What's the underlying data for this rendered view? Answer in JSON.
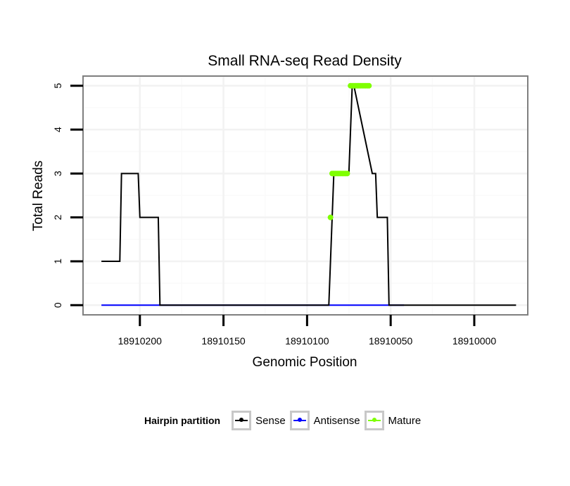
{
  "chart_data": {
    "type": "line",
    "title": "Small RNA-seq Read Density",
    "xlabel": "Genomic Position",
    "ylabel": "Total Reads",
    "xlim": [
      18910234,
      18909968
    ],
    "ylim": [
      -0.22,
      5.22
    ],
    "x_reversed": true,
    "x_ticks": [
      18910200,
      18910150,
      18910100,
      18910050,
      18910000
    ],
    "x_tick_labels": [
      "18910200",
      "18910150",
      "18910100",
      "18910050",
      "18910000"
    ],
    "y_ticks": [
      0,
      1,
      2,
      3,
      4,
      5
    ],
    "y_tick_labels": [
      "0",
      "1",
      "2",
      "3",
      "4",
      "5"
    ],
    "grid": true,
    "series": [
      {
        "name": "Sense",
        "color": "#000000",
        "x": [
          18910223,
          18910212,
          18910211,
          18910201,
          18910200,
          18910189,
          18910188,
          18910087,
          18910085,
          18910084,
          18910075,
          18910073,
          18910072,
          18910061,
          18910059,
          18910058,
          18910052,
          18910051,
          18910043,
          18910042,
          18909975
        ],
        "y": [
          1,
          1,
          3,
          3,
          2,
          2,
          0,
          0,
          2,
          3,
          3,
          5,
          5,
          3,
          3,
          2,
          2,
          0,
          0,
          0,
          0
        ]
      },
      {
        "name": "Antisense",
        "color": "#0000ff",
        "x": [
          18910223,
          18910042
        ],
        "y": [
          0,
          0
        ]
      },
      {
        "name": "Mature",
        "color": "#7fff00",
        "x": [
          18910086,
          18910085,
          18910084,
          18910083,
          18910082,
          18910081,
          18910080,
          18910079,
          18910078,
          18910077,
          18910076,
          18910074,
          18910073,
          18910072,
          18910071,
          18910070,
          18910069,
          18910068,
          18910067,
          18910066,
          18910065,
          18910064,
          18910063
        ],
        "y": [
          2,
          3,
          3,
          3,
          3,
          3,
          3,
          3,
          3,
          3,
          3,
          5,
          5,
          5,
          5,
          5,
          5,
          5,
          5,
          5,
          5,
          5,
          5
        ]
      }
    ],
    "legend": {
      "title": "Hairpin partition",
      "position": "bottom",
      "entries": [
        "Sense",
        "Antisense",
        "Mature"
      ]
    }
  }
}
